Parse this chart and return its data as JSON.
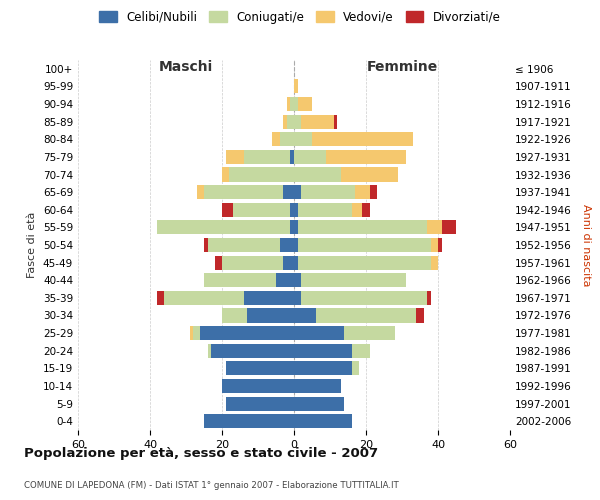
{
  "age_groups": [
    "0-4",
    "5-9",
    "10-14",
    "15-19",
    "20-24",
    "25-29",
    "30-34",
    "35-39",
    "40-44",
    "45-49",
    "50-54",
    "55-59",
    "60-64",
    "65-69",
    "70-74",
    "75-79",
    "80-84",
    "85-89",
    "90-94",
    "95-99",
    "100+"
  ],
  "birth_years": [
    "2002-2006",
    "1997-2001",
    "1992-1996",
    "1987-1991",
    "1982-1986",
    "1977-1981",
    "1972-1976",
    "1967-1971",
    "1962-1966",
    "1957-1961",
    "1952-1956",
    "1947-1951",
    "1942-1946",
    "1937-1941",
    "1932-1936",
    "1927-1931",
    "1922-1926",
    "1917-1921",
    "1912-1916",
    "1907-1911",
    "≤ 1906"
  ],
  "maschi": {
    "celibi": [
      25,
      19,
      20,
      19,
      23,
      26,
      13,
      14,
      5,
      3,
      4,
      1,
      1,
      3,
      0,
      1,
      0,
      0,
      0,
      0,
      0
    ],
    "coniugati": [
      0,
      0,
      0,
      0,
      1,
      2,
      7,
      22,
      20,
      17,
      20,
      37,
      16,
      22,
      18,
      13,
      4,
      2,
      1,
      0,
      0
    ],
    "vedovi": [
      0,
      0,
      0,
      0,
      0,
      1,
      0,
      0,
      0,
      0,
      0,
      0,
      0,
      2,
      2,
      5,
      2,
      1,
      1,
      0,
      0
    ],
    "divorziati": [
      0,
      0,
      0,
      0,
      0,
      0,
      0,
      2,
      0,
      2,
      1,
      0,
      3,
      0,
      0,
      0,
      0,
      0,
      0,
      0,
      0
    ]
  },
  "femmine": {
    "nubili": [
      16,
      14,
      13,
      16,
      16,
      14,
      6,
      2,
      2,
      1,
      1,
      1,
      1,
      2,
      0,
      0,
      0,
      0,
      0,
      0,
      0
    ],
    "coniugate": [
      0,
      0,
      0,
      2,
      5,
      14,
      28,
      35,
      29,
      37,
      37,
      36,
      15,
      15,
      13,
      9,
      5,
      2,
      1,
      0,
      0
    ],
    "vedove": [
      0,
      0,
      0,
      0,
      0,
      0,
      0,
      0,
      0,
      2,
      2,
      4,
      3,
      4,
      16,
      22,
      28,
      9,
      4,
      1,
      0
    ],
    "divorziate": [
      0,
      0,
      0,
      0,
      0,
      0,
      2,
      1,
      0,
      0,
      1,
      4,
      2,
      2,
      0,
      0,
      0,
      1,
      0,
      0,
      0
    ]
  },
  "colors": {
    "celibi": "#3d6fa8",
    "coniugati": "#c5d9a0",
    "vedovi": "#f5c86e",
    "divorziati": "#c0282a"
  },
  "xlim": 60,
  "title": "Popolazione per età, sesso e stato civile - 2007",
  "subtitle": "COMUNE DI LAPEDONA (FM) - Dati ISTAT 1° gennaio 2007 - Elaborazione TUTTITALIA.IT",
  "ylabel_left": "Fasce di età",
  "ylabel_right": "Anni di nascita",
  "xlabel_maschi": "Maschi",
  "xlabel_femmine": "Femmine",
  "legend_labels": [
    "Celibi/Nubili",
    "Coniugati/e",
    "Vedovi/e",
    "Divorziati/e"
  ],
  "background_color": "#ffffff",
  "grid_color": "#cccccc"
}
